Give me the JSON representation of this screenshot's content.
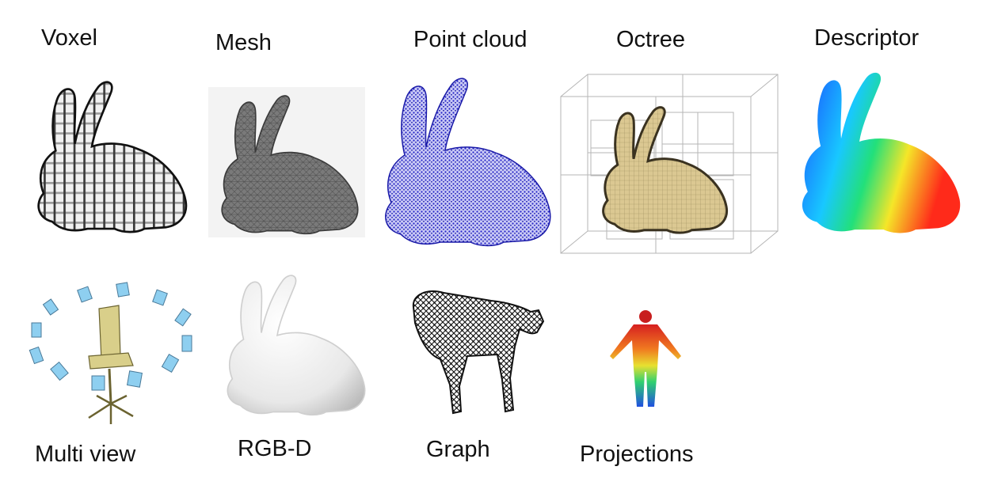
{
  "top_row": [
    {
      "label": "Voxel",
      "icon": "voxel-bunny-icon"
    },
    {
      "label": "Mesh",
      "icon": "mesh-bunny-icon"
    },
    {
      "label": "Point cloud",
      "icon": "pointcloud-bunny-icon"
    },
    {
      "label": "Octree",
      "icon": "octree-bunny-icon"
    },
    {
      "label": "Descriptor",
      "icon": "descriptor-bunny-icon"
    }
  ],
  "bottom_row": [
    {
      "label": "Multi view",
      "icon": "multiview-chair-icon"
    },
    {
      "label": "RGB-D",
      "icon": "rgbd-bunny-icon"
    },
    {
      "label": "Graph",
      "icon": "graph-horse-icon"
    },
    {
      "label": "Projections",
      "icon": "projection-human-icon"
    }
  ],
  "colors": {
    "voxel_light": "#f2f2f2",
    "voxel_dark": "#1a1a1a",
    "mesh": "#6e6e6e",
    "pointcloud": "#2a2ad0",
    "octree_fill": "#d8c48e",
    "descriptor_blue": "#1a4cff",
    "descriptor_green": "#22e07a",
    "descriptor_red": "#ff2a1a",
    "multiview_cam": "#8ecff0",
    "chair": "#d9cf8a"
  }
}
